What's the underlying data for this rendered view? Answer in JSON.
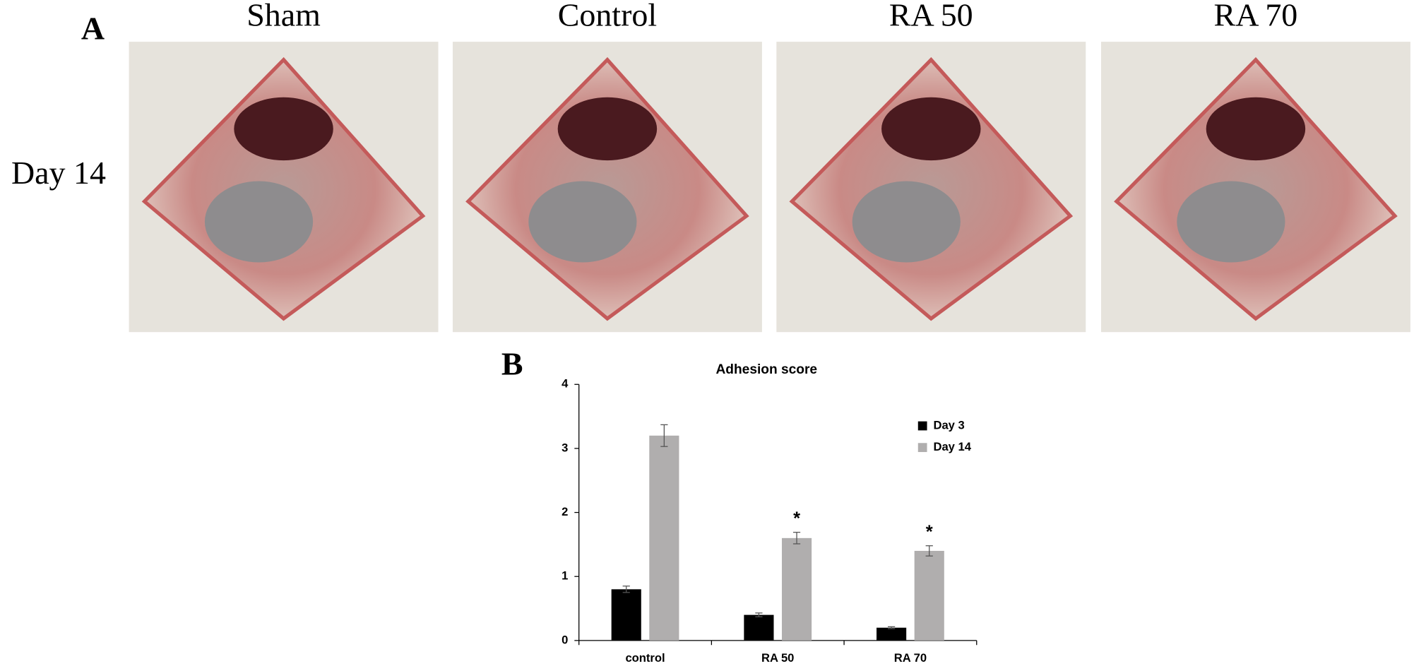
{
  "figure": {
    "panel_a_label": "A",
    "panel_b_label": "B",
    "row_label": "Day 14",
    "photos": [
      "Sham",
      "Control",
      "RA 50",
      "RA 70"
    ]
  },
  "chart_data": {
    "type": "bar",
    "title": "Adhesion score",
    "categories": [
      "control",
      "RA 50",
      "RA 70"
    ],
    "series": [
      {
        "name": "Day 3",
        "color": "#000000",
        "values": [
          0.8,
          0.4,
          0.2
        ],
        "errors": [
          0.05,
          0.03,
          0.015
        ],
        "annotations": [
          null,
          null,
          null
        ]
      },
      {
        "name": "Day 14",
        "color": "#b0aeae",
        "values": [
          3.2,
          1.6,
          1.4
        ],
        "errors": [
          0.17,
          0.09,
          0.08
        ],
        "annotations": [
          null,
          "*",
          "*"
        ]
      }
    ],
    "ylim": [
      0,
      4
    ],
    "yticks": [
      0,
      1,
      2,
      3,
      4
    ],
    "legend": "upper right",
    "grid": false
  }
}
